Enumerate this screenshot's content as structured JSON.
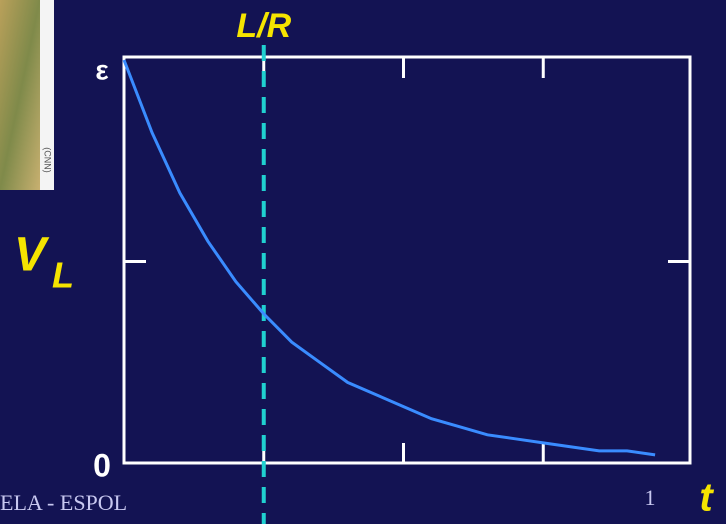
{
  "chart_data": {
    "type": "line",
    "ylabel": "V",
    "ylabel_subscript": "L",
    "xlabel": "t",
    "x": [
      0,
      0.2,
      0.4,
      0.6,
      0.8,
      1.0,
      1.2,
      1.4,
      1.6,
      1.8,
      2.0,
      2.2,
      2.4,
      2.6,
      2.8,
      3.0,
      3.2,
      3.4,
      3.6,
      3.8
    ],
    "values": [
      1,
      0.82,
      0.67,
      0.55,
      0.45,
      0.37,
      0.3,
      0.25,
      0.2,
      0.17,
      0.14,
      0.11,
      0.09,
      0.07,
      0.06,
      0.05,
      0.04,
      0.03,
      0.03,
      0.02
    ],
    "color": "#3a8cff",
    "xlim": [
      0,
      4.05
    ],
    "xticks": [
      1,
      2,
      3
    ],
    "ylim": [
      0,
      1
    ],
    "yticks": [
      {
        "value": 0,
        "label": "0"
      },
      {
        "value": 0.5,
        "label": null
      },
      {
        "value": 1,
        "label": "ε"
      }
    ],
    "annotations": [
      {
        "text": "L/R",
        "x": 1,
        "color": "#20d0d0"
      }
    ]
  },
  "footer": {
    "text": "ELA - ESPOL",
    "page_number": 1
  },
  "photo_credit": "(CNN)"
}
